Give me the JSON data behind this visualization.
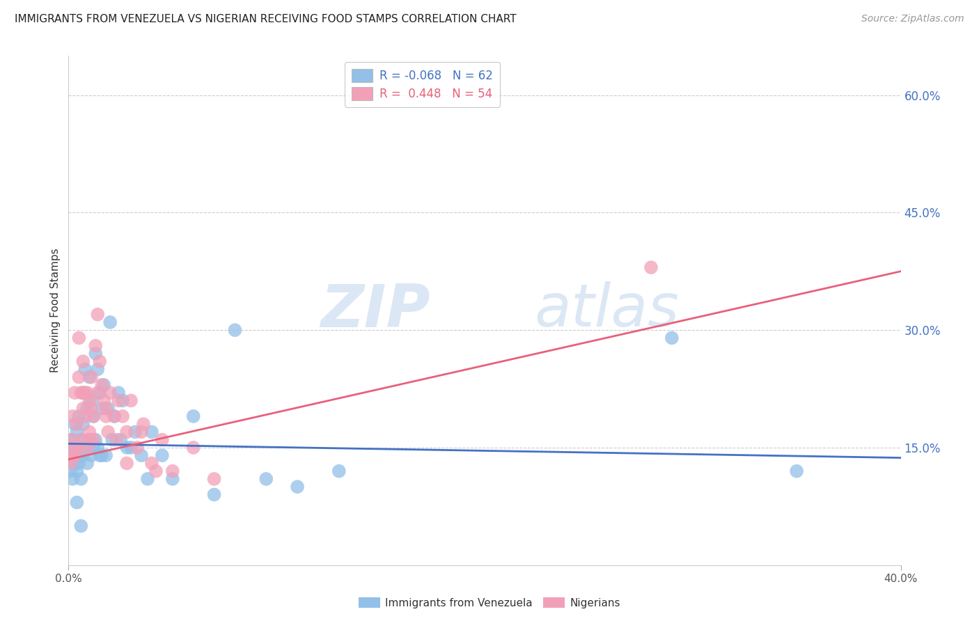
{
  "title": "IMMIGRANTS FROM VENEZUELA VS NIGERIAN RECEIVING FOOD STAMPS CORRELATION CHART",
  "source": "Source: ZipAtlas.com",
  "ylabel": "Receiving Food Stamps",
  "ytick_labels": [
    "60.0%",
    "45.0%",
    "30.0%",
    "15.0%"
  ],
  "ytick_values": [
    0.6,
    0.45,
    0.3,
    0.15
  ],
  "xlim": [
    0.0,
    0.4
  ],
  "ylim": [
    0.0,
    0.65
  ],
  "color_blue": "#92C0E8",
  "color_pink": "#F2A0B8",
  "trendline_blue": "#4472C4",
  "trendline_pink": "#E8607A",
  "watermark_zip": "ZIP",
  "watermark_atlas": "atlas",
  "legend_color_blue": "#4472C4",
  "legend_color_pink": "#E8607A",
  "legend_r1": "R = ",
  "legend_v1": "-0.068",
  "legend_n1": "  N = ",
  "legend_vn1": "62",
  "legend_r2": "R =  ",
  "legend_v2": "0.448",
  "legend_n2": "  N = ",
  "legend_vn2": "54",
  "venezuela_x": [
    0.001,
    0.001,
    0.002,
    0.002,
    0.003,
    0.003,
    0.003,
    0.004,
    0.004,
    0.005,
    0.005,
    0.005,
    0.006,
    0.006,
    0.007,
    0.007,
    0.007,
    0.008,
    0.008,
    0.009,
    0.009,
    0.01,
    0.01,
    0.011,
    0.011,
    0.012,
    0.012,
    0.013,
    0.013,
    0.014,
    0.014,
    0.015,
    0.015,
    0.016,
    0.016,
    0.017,
    0.018,
    0.019,
    0.02,
    0.021,
    0.022,
    0.024,
    0.025,
    0.026,
    0.028,
    0.03,
    0.032,
    0.035,
    0.038,
    0.04,
    0.045,
    0.05,
    0.06,
    0.07,
    0.08,
    0.095,
    0.11,
    0.13,
    0.29,
    0.35,
    0.004,
    0.006
  ],
  "venezuela_y": [
    0.14,
    0.12,
    0.16,
    0.11,
    0.18,
    0.15,
    0.13,
    0.17,
    0.12,
    0.19,
    0.14,
    0.13,
    0.16,
    0.11,
    0.22,
    0.18,
    0.14,
    0.25,
    0.15,
    0.2,
    0.13,
    0.24,
    0.16,
    0.21,
    0.14,
    0.19,
    0.15,
    0.27,
    0.16,
    0.25,
    0.15,
    0.22,
    0.14,
    0.2,
    0.14,
    0.23,
    0.14,
    0.2,
    0.31,
    0.16,
    0.19,
    0.22,
    0.16,
    0.21,
    0.15,
    0.15,
    0.17,
    0.14,
    0.11,
    0.17,
    0.14,
    0.11,
    0.19,
    0.09,
    0.3,
    0.11,
    0.1,
    0.12,
    0.29,
    0.12,
    0.08,
    0.05
  ],
  "nigeria_x": [
    0.001,
    0.001,
    0.002,
    0.002,
    0.003,
    0.003,
    0.004,
    0.005,
    0.005,
    0.006,
    0.006,
    0.007,
    0.007,
    0.008,
    0.009,
    0.009,
    0.01,
    0.01,
    0.011,
    0.012,
    0.012,
    0.013,
    0.014,
    0.015,
    0.016,
    0.017,
    0.018,
    0.019,
    0.02,
    0.022,
    0.024,
    0.026,
    0.028,
    0.03,
    0.033,
    0.036,
    0.04,
    0.045,
    0.05,
    0.06,
    0.07,
    0.005,
    0.008,
    0.011,
    0.014,
    0.018,
    0.023,
    0.028,
    0.035,
    0.042,
    0.003,
    0.007,
    0.01,
    0.28
  ],
  "nigeria_y": [
    0.16,
    0.13,
    0.19,
    0.14,
    0.22,
    0.15,
    0.18,
    0.24,
    0.15,
    0.22,
    0.16,
    0.2,
    0.26,
    0.19,
    0.22,
    0.15,
    0.21,
    0.17,
    0.24,
    0.19,
    0.16,
    0.28,
    0.22,
    0.26,
    0.23,
    0.21,
    0.2,
    0.17,
    0.22,
    0.19,
    0.21,
    0.19,
    0.17,
    0.21,
    0.15,
    0.18,
    0.13,
    0.16,
    0.12,
    0.15,
    0.11,
    0.29,
    0.22,
    0.2,
    0.32,
    0.19,
    0.16,
    0.13,
    0.17,
    0.12,
    0.14,
    0.22,
    0.16,
    0.38
  ]
}
